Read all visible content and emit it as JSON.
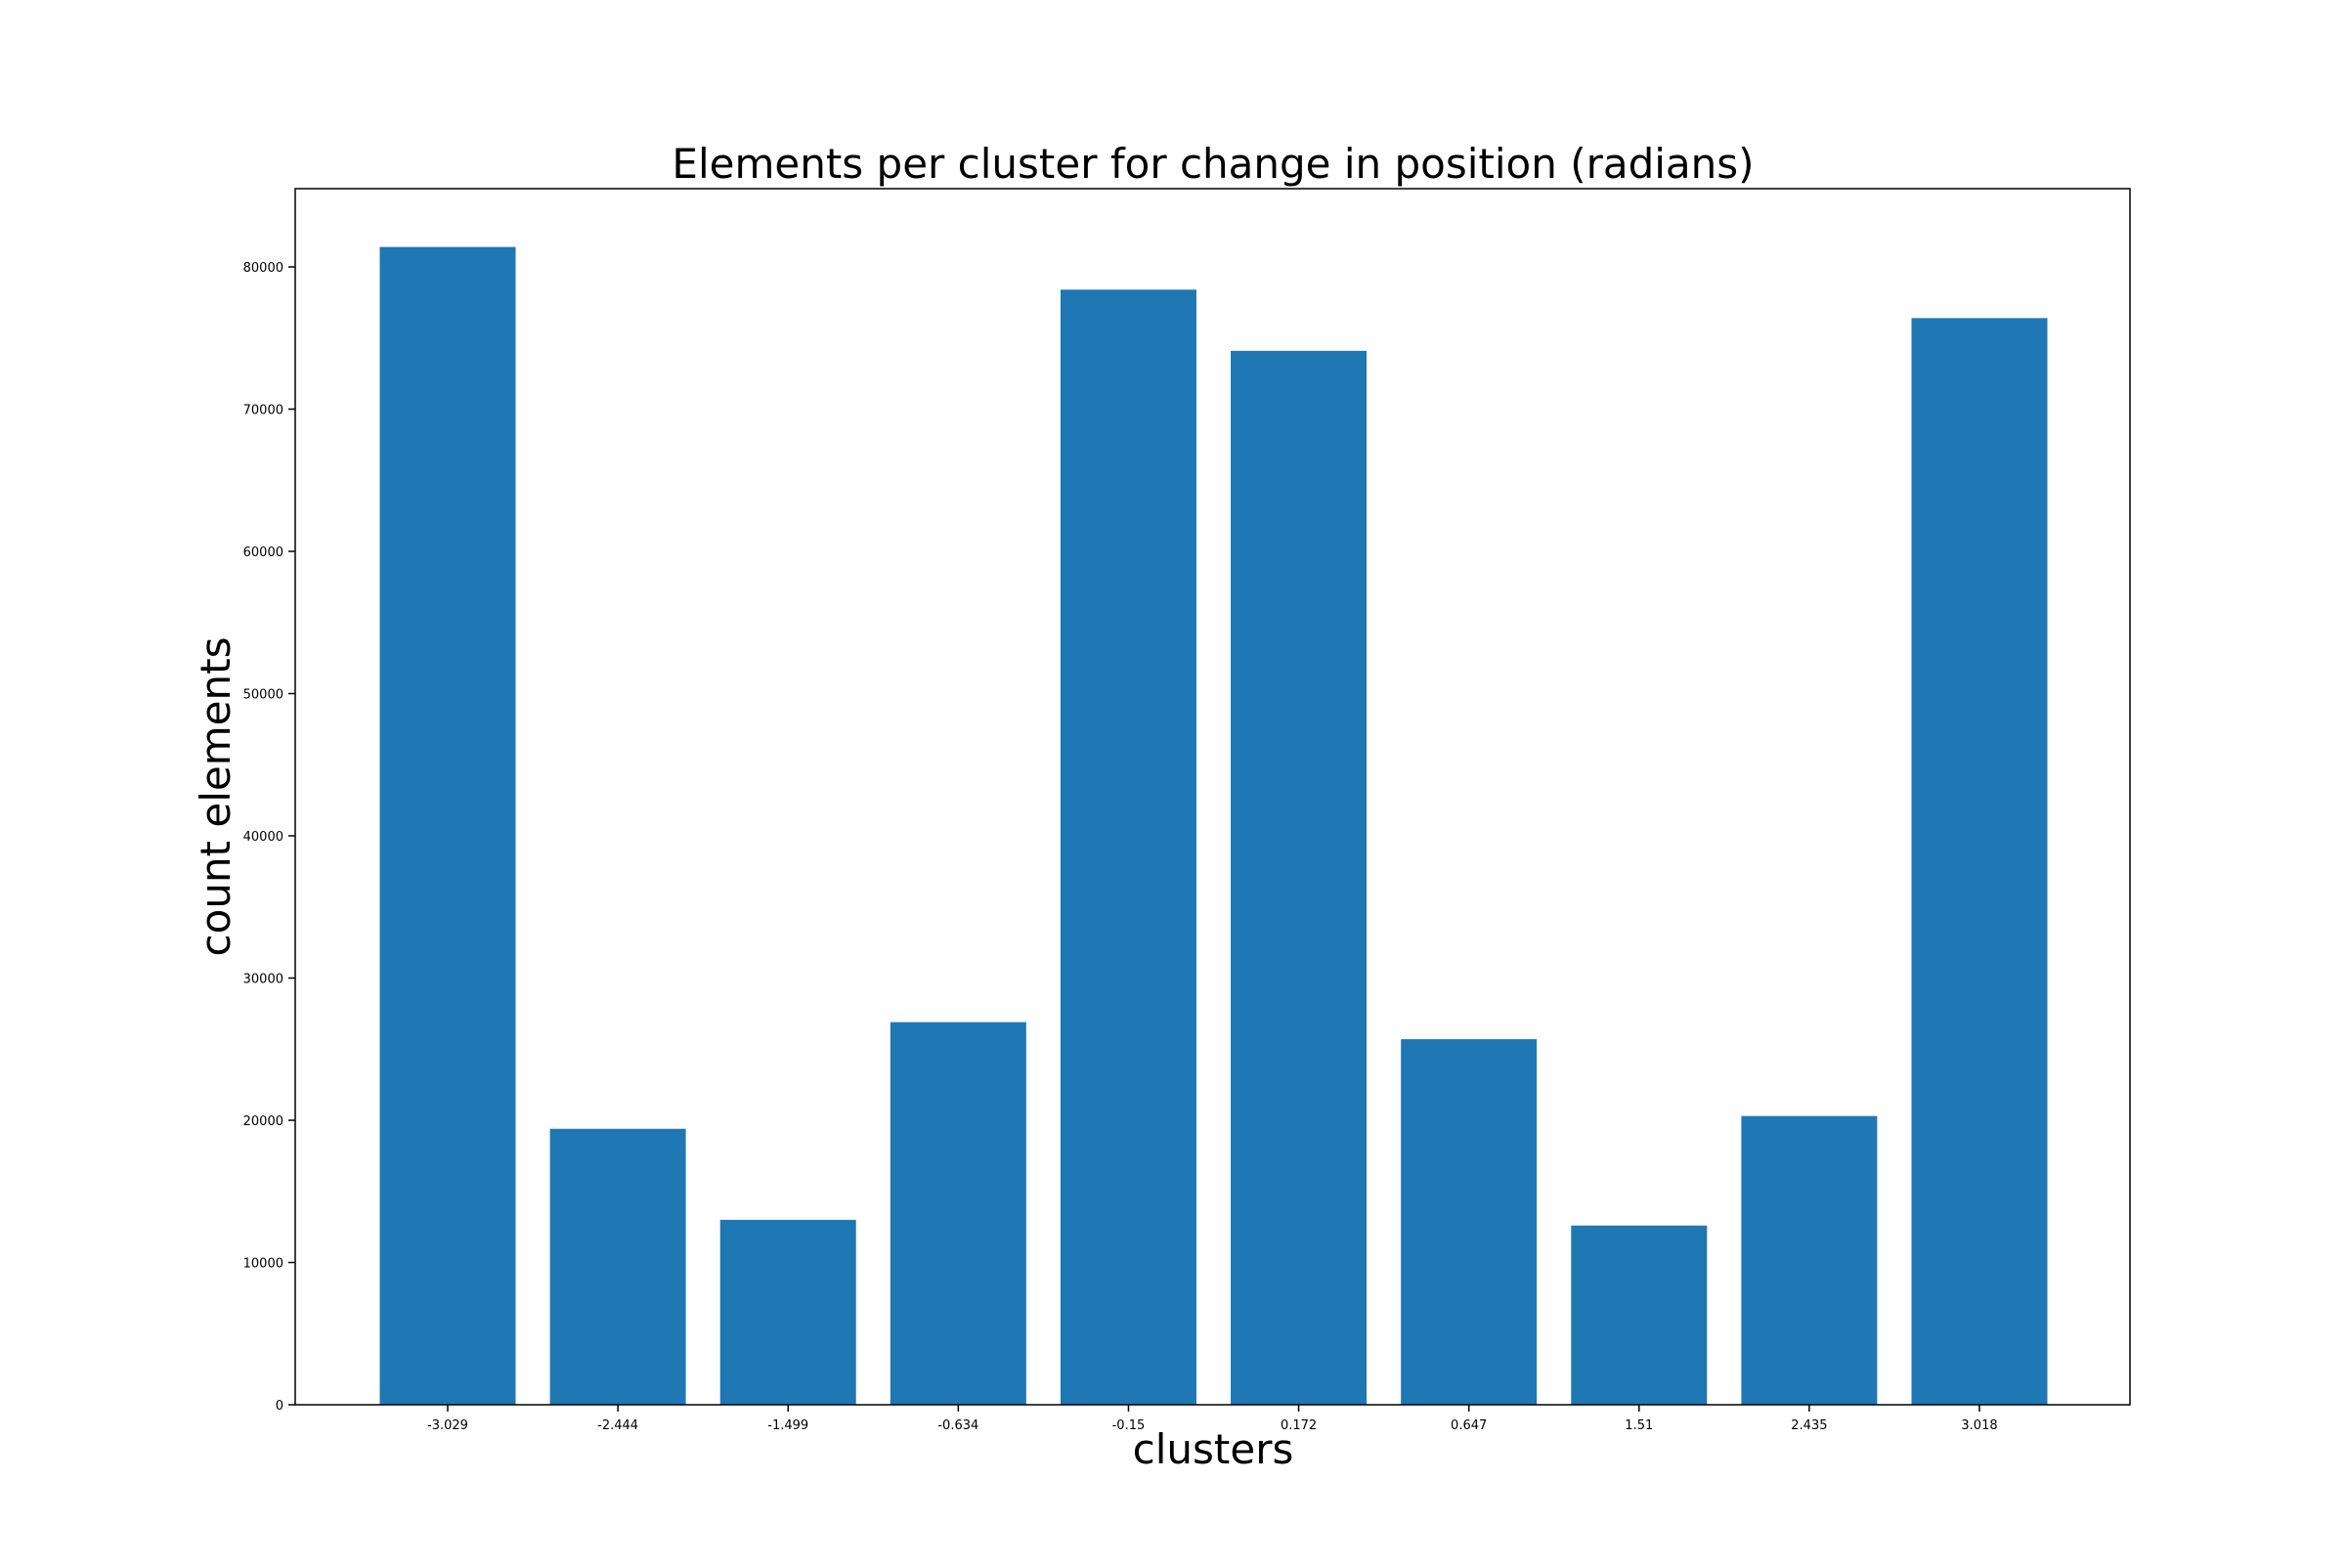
{
  "chart_data": {
    "type": "bar",
    "title": "Elements per cluster for change in position (radians)",
    "xlabel": "clusters",
    "ylabel": "count elements",
    "categories": [
      "-3.029",
      "-2.444",
      "-1.499",
      "-0.634",
      "-0.15",
      "0.172",
      "0.647",
      "1.51",
      "2.435",
      "3.018"
    ],
    "values": [
      81400,
      19400,
      13000,
      26900,
      78400,
      74100,
      25700,
      12600,
      20300,
      76400
    ],
    "ylim": [
      0,
      85500
    ],
    "yticks": [
      0,
      10000,
      20000,
      30000,
      40000,
      50000,
      60000,
      70000,
      80000
    ],
    "ytick_labels": [
      "0",
      "10000",
      "20000",
      "30000",
      "40000",
      "50000",
      "60000",
      "70000",
      "80000"
    ],
    "bar_color": "#1f77b4",
    "grid": false,
    "legend": "none"
  }
}
